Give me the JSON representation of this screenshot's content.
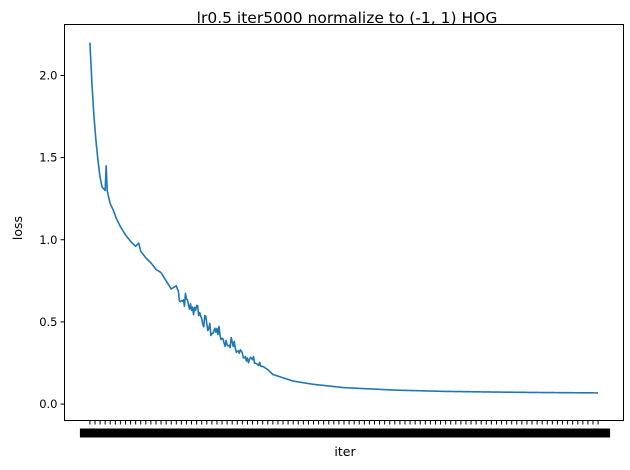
{
  "chart_data": {
    "type": "line",
    "title": "lr0.5 iter5000 normalize to (-1, 1) HOG",
    "xlabel": "iter",
    "ylabel": "loss",
    "xlim": [
      -250,
      5250
    ],
    "ylim": [
      -0.1,
      2.31
    ],
    "grid": false,
    "x_tick_labels_note": "x tick labels overlap into a dense unreadable black band",
    "y_ticks": [
      {
        "value": 0.0,
        "label": "0.0"
      },
      {
        "value": 0.5,
        "label": "0.5"
      },
      {
        "value": 1.0,
        "label": "1.0"
      },
      {
        "value": 1.5,
        "label": "1.5"
      },
      {
        "value": 2.0,
        "label": "2.0"
      }
    ],
    "series": [
      {
        "color": "#1f77b4",
        "x": [
          0,
          20,
          40,
          60,
          80,
          100,
          120,
          150,
          160,
          170,
          180,
          200,
          230,
          260,
          300,
          350,
          400,
          450,
          480,
          500,
          550,
          600,
          650,
          700,
          750,
          800,
          850,
          900,
          950,
          1000,
          1050,
          1100,
          1150,
          1200,
          1250,
          1300,
          1350,
          1400,
          1450,
          1500,
          1550,
          1600,
          1650,
          1700,
          1750,
          1800,
          1900,
          2000,
          2200,
          2500,
          3000,
          3500,
          4000,
          4500,
          5000
        ],
        "y": [
          2.2,
          1.95,
          1.75,
          1.6,
          1.48,
          1.38,
          1.32,
          1.3,
          1.45,
          1.3,
          1.27,
          1.22,
          1.18,
          1.13,
          1.08,
          1.03,
          0.99,
          0.96,
          0.98,
          0.93,
          0.89,
          0.86,
          0.82,
          0.8,
          0.75,
          0.7,
          0.72,
          0.63,
          0.64,
          0.57,
          0.6,
          0.52,
          0.49,
          0.43,
          0.46,
          0.4,
          0.36,
          0.38,
          0.32,
          0.31,
          0.28,
          0.27,
          0.24,
          0.23,
          0.21,
          0.18,
          0.16,
          0.14,
          0.12,
          0.1,
          0.085,
          0.077,
          0.073,
          0.07,
          0.068
        ],
        "noise_segments": [
          {
            "x": [
              850,
              1700
            ],
            "amp": 0.1
          }
        ]
      }
    ]
  }
}
